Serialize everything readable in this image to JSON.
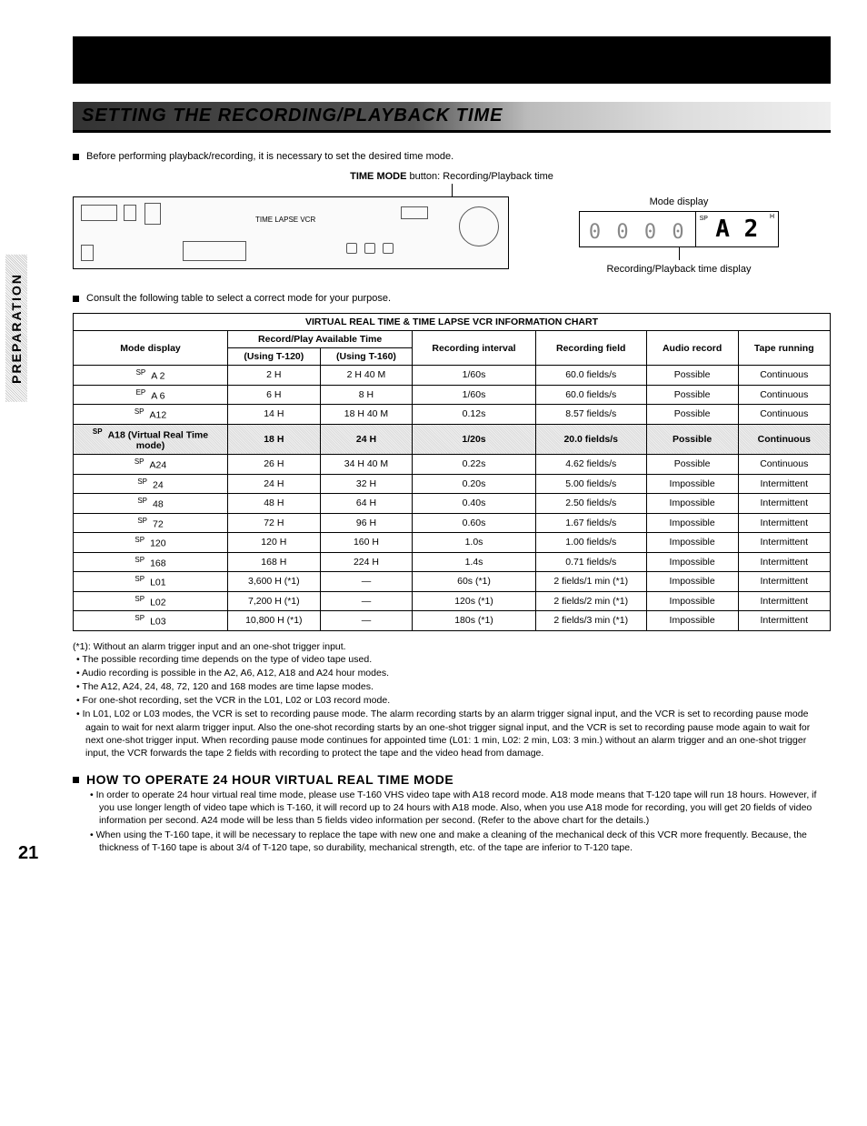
{
  "side_label": "PREPARATION",
  "title": "SETTING THE RECORDING/PLAYBACK TIME",
  "intro_bullet": "Before performing playback/recording, it is necessary to set the desired time mode.",
  "time_mode_caption_bold": "TIME MODE",
  "time_mode_caption_rest": " button: Recording/Playback time",
  "vcr_label": "TIME LAPSE VCR",
  "mode_display_label": "Mode display",
  "lcd_counter": "0 0 0 0",
  "lcd_sp": "SP",
  "lcd_mode": "A 2",
  "lcd_h": "H",
  "sub_caption": "Recording/Playback time display",
  "consult_bullet": "Consult the following table to select a correct mode for your purpose.",
  "chart_title": "VIRTUAL REAL TIME & TIME LAPSE VCR INFORMATION CHART",
  "headers": {
    "mode": "Mode display",
    "avail": "Record/Play Available Time",
    "t120": "(Using T-120)",
    "t160": "(Using T-160)",
    "interval": "Recording interval",
    "field": "Recording field",
    "audio": "Audio record",
    "tape": "Tape running"
  },
  "rows": [
    {
      "sp": "SP",
      "mode": "A 2",
      "t120": "2 H",
      "t160": "2 H 40 M",
      "int": "1/60s",
      "field": "60.0 fields/s",
      "audio": "Possible",
      "tape": "Continuous",
      "shaded": false
    },
    {
      "sp": "EP",
      "mode": "A 6",
      "t120": "6 H",
      "t160": "8 H",
      "int": "1/60s",
      "field": "60.0 fields/s",
      "audio": "Possible",
      "tape": "Continuous",
      "shaded": false
    },
    {
      "sp": "SP",
      "mode": "A12",
      "t120": "14 H",
      "t160": "18 H 40 M",
      "int": "0.12s",
      "field": "8.57 fields/s",
      "audio": "Possible",
      "tape": "Continuous",
      "shaded": false
    },
    {
      "sp": "SP",
      "mode": "A18 (Virtual Real Time mode)",
      "t120": "18 H",
      "t160": "24 H",
      "int": "1/20s",
      "field": "20.0 fields/s",
      "audio": "Possible",
      "tape": "Continuous",
      "shaded": true
    },
    {
      "sp": "SP",
      "mode": "A24",
      "t120": "26 H",
      "t160": "34 H 40 M",
      "int": "0.22s",
      "field": "4.62 fields/s",
      "audio": "Possible",
      "tape": "Continuous",
      "shaded": false
    },
    {
      "sp": "SP",
      "mode": "24",
      "t120": "24 H",
      "t160": "32 H",
      "int": "0.20s",
      "field": "5.00 fields/s",
      "audio": "Impossible",
      "tape": "Intermittent",
      "shaded": false
    },
    {
      "sp": "SP",
      "mode": "48",
      "t120": "48 H",
      "t160": "64 H",
      "int": "0.40s",
      "field": "2.50 fields/s",
      "audio": "Impossible",
      "tape": "Intermittent",
      "shaded": false
    },
    {
      "sp": "SP",
      "mode": "72",
      "t120": "72 H",
      "t160": "96 H",
      "int": "0.60s",
      "field": "1.67 fields/s",
      "audio": "Impossible",
      "tape": "Intermittent",
      "shaded": false
    },
    {
      "sp": "SP",
      "mode": "120",
      "t120": "120 H",
      "t160": "160 H",
      "int": "1.0s",
      "field": "1.00 fields/s",
      "audio": "Impossible",
      "tape": "Intermittent",
      "shaded": false
    },
    {
      "sp": "SP",
      "mode": "168",
      "t120": "168 H",
      "t160": "224 H",
      "int": "1.4s",
      "field": "0.71 fields/s",
      "audio": "Impossible",
      "tape": "Intermittent",
      "shaded": false
    },
    {
      "sp": "SP",
      "mode": "L01",
      "t120": "3,600 H (*1)",
      "t160": "—",
      "int": "60s  (*1)",
      "field": "2 fields/1 min (*1)",
      "audio": "Impossible",
      "tape": "Intermittent",
      "shaded": false
    },
    {
      "sp": "SP",
      "mode": "L02",
      "t120": "7,200 H (*1)",
      "t160": "—",
      "int": "120s  (*1)",
      "field": "2 fields/2 min (*1)",
      "audio": "Impossible",
      "tape": "Intermittent",
      "shaded": false
    },
    {
      "sp": "SP",
      "mode": "L03",
      "t120": "10,800 H (*1)",
      "t160": "—",
      "int": "180s  (*1)",
      "field": "2 fields/3 min (*1)",
      "audio": "Impossible",
      "tape": "Intermittent",
      "shaded": false
    }
  ],
  "footnote_lead": "(*1): Without an alarm trigger input and an one-shot trigger input.",
  "notes": [
    "The possible recording time depends on the type of video tape used.",
    "Audio recording is possible in the A2, A6, A12, A18 and A24 hour modes.",
    "The A12, A24, 24, 48, 72, 120 and 168 modes are time lapse modes.",
    "For one-shot recording, set the VCR in the L01, L02 or L03 record mode.",
    "In L01, L02 or L03 modes, the VCR is set to recording pause mode. The alarm recording starts by an alarm trigger signal input, and the VCR is set to recording pause mode again to wait for next alarm trigger input. Also the one-shot recording starts by an one-shot trigger signal input, and the VCR is set to recording pause mode again to wait for next one-shot trigger input. When recording pause mode continues for appointed time (L01: 1 min, L02: 2 min, L03: 3 min.) without an alarm trigger and an one-shot trigger input, the VCR forwards the tape 2 fields with recording to protect the tape and the video head from damage."
  ],
  "howto_title": "HOW TO OPERATE 24 HOUR VIRTUAL REAL TIME MODE",
  "howto_items": [
    "In order to operate 24 hour virtual real time mode, please use T-160 VHS video tape with A18 record mode. A18 mode means that T-120 tape will run 18 hours. However, if you use longer length of video tape which is T-160, it will record up to 24 hours with A18 mode. Also, when you use A18 mode for recording, you will get 20 fields of video information per second. A24 mode will be less than 5 fields video information per second. (Refer to the above chart for the details.)",
    "When using the T-160 tape, it will be necessary to replace the tape with new one and make a cleaning of the mechanical deck of this VCR more frequently. Because, the thickness of T-160 tape is about 3/4 of T-120 tape, so durability, mechanical strength, etc. of the tape are inferior to T-120 tape."
  ],
  "page_number": "21",
  "colors": {
    "text": "#000000",
    "bg": "#ffffff",
    "bar": "#000000",
    "shade": "#dddddd"
  }
}
